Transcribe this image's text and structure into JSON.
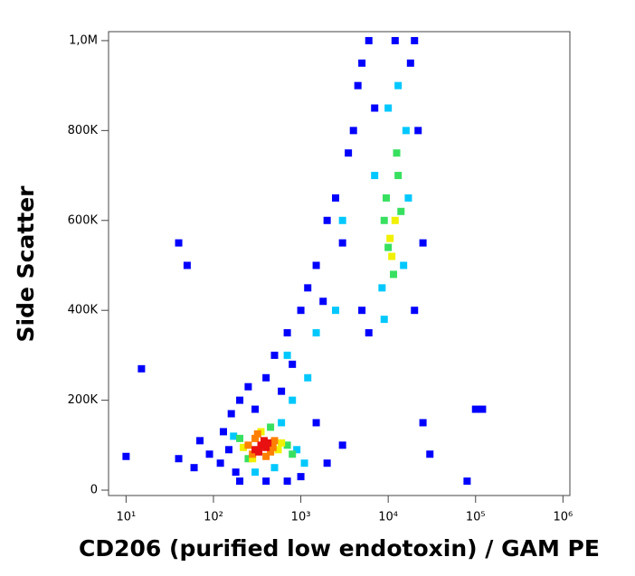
{
  "chart_data": {
    "type": "scatter",
    "xlabel": "CD206 (purified low endotoxin) / GAM PE",
    "ylabel": "Side Scatter",
    "xscale": "log",
    "xlim": [
      6.3,
      1200000
    ],
    "ylim": [
      -12000,
      1020000
    ],
    "xticks": [
      {
        "value": 10,
        "label": "10¹"
      },
      {
        "value": 100,
        "label": "10²"
      },
      {
        "value": 1000,
        "label": "10³"
      },
      {
        "value": 10000,
        "label": "10⁴"
      },
      {
        "value": 100000,
        "label": "10⁵"
      },
      {
        "value": 1000000,
        "label": "10⁶"
      }
    ],
    "yticks": [
      0,
      {
        "value": 200000,
        "label": "200K"
      },
      {
        "value": 400000,
        "label": "400K"
      },
      {
        "value": 600000,
        "label": "600K"
      },
      {
        "value": 800000,
        "label": "800K"
      },
      {
        "value": 1000000,
        "label": "1,0M"
      }
    ],
    "series": [
      {
        "color": "#0000ff",
        "x": [
          120,
          150,
          180,
          130,
          90,
          60,
          40,
          70,
          160,
          200,
          250,
          300,
          400,
          500,
          600,
          700,
          800,
          1000,
          1200,
          1500,
          1800,
          2000,
          2500,
          3000,
          3500,
          4000,
          4500,
          5000,
          6000,
          7000,
          1500,
          2000,
          3000,
          1000,
          700,
          400,
          200,
          5000,
          6000,
          20000,
          25000,
          22000,
          18000,
          20000,
          25000,
          30000,
          100000,
          120000,
          80000,
          10,
          15,
          40,
          50,
          12000
        ],
        "y": [
          60000,
          90000,
          40000,
          130000,
          80000,
          50000,
          70000,
          110000,
          170000,
          200000,
          230000,
          180000,
          250000,
          300000,
          220000,
          350000,
          280000,
          400000,
          450000,
          500000,
          420000,
          600000,
          650000,
          550000,
          750000,
          800000,
          900000,
          950000,
          1000000,
          850000,
          150000,
          60000,
          100000,
          30000,
          20000,
          20000,
          20000,
          400000,
          350000,
          400000,
          550000,
          800000,
          950000,
          1000000,
          150000,
          80000,
          180000,
          180000,
          20000,
          75000,
          270000,
          550000,
          500000,
          1000000
        ]
      },
      {
        "color": "#00c8ff",
        "x": [
          170,
          900,
          1100,
          300,
          600,
          500,
          800,
          1200,
          1500,
          3000,
          8500,
          15000,
          16000,
          9000,
          13000,
          7000,
          17000,
          10000,
          2500,
          700
        ],
        "y": [
          120000,
          90000,
          60000,
          40000,
          150000,
          50000,
          200000,
          250000,
          350000,
          600000,
          450000,
          500000,
          800000,
          380000,
          900000,
          700000,
          650000,
          850000,
          400000,
          300000
        ]
      },
      {
        "color": "#38e060",
        "x": [
          200,
          700,
          800,
          250,
          450,
          9500,
          13000,
          11500,
          10000,
          14000,
          12500,
          9000
        ],
        "y": [
          115000,
          100000,
          80000,
          70000,
          140000,
          650000,
          700000,
          480000,
          540000,
          620000,
          750000,
          600000
        ]
      },
      {
        "color": "#f0f000",
        "x": [
          220,
          550,
          600,
          350,
          280,
          10500,
          12000,
          11000
        ],
        "y": [
          95000,
          90000,
          105000,
          130000,
          70000,
          560000,
          600000,
          520000
        ]
      },
      {
        "color": "#ff8000",
        "x": [
          250,
          280,
          450,
          500,
          320,
          400,
          300,
          480
        ],
        "y": [
          100000,
          80000,
          85000,
          110000,
          125000,
          75000,
          115000,
          95000
        ]
      },
      {
        "color": "#e81010",
        "x": [
          300,
          350,
          400,
          380,
          420,
          330
        ],
        "y": [
          90000,
          100000,
          95000,
          110000,
          105000,
          85000
        ]
      }
    ]
  }
}
